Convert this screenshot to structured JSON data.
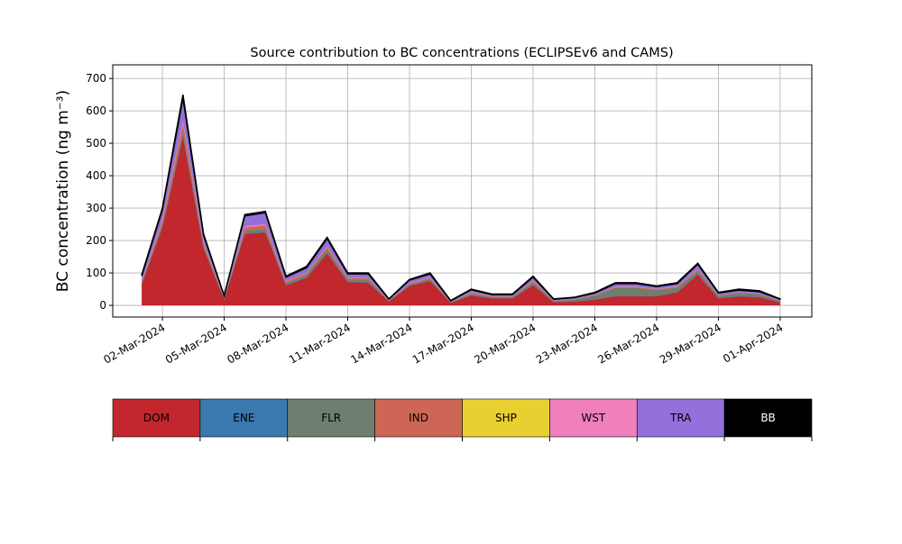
{
  "chart_data": {
    "type": "stacked_area",
    "title": "Source contribution to BC concentrations (ECLIPSEv6 and CAMS)",
    "y_label": "BC concentration (ng m⁻³)",
    "x": [
      "01-Mar-2024",
      "02-Mar-2024",
      "03-Mar-2024",
      "04-Mar-2024",
      "05-Mar-2024",
      "06-Mar-2024",
      "07-Mar-2024",
      "08-Mar-2024",
      "09-Mar-2024",
      "10-Mar-2024",
      "11-Mar-2024",
      "12-Mar-2024",
      "13-Mar-2024",
      "14-Mar-2024",
      "15-Mar-2024",
      "16-Mar-2024",
      "17-Mar-2024",
      "18-Mar-2024",
      "19-Mar-2024",
      "20-Mar-2024",
      "21-Mar-2024",
      "22-Mar-2024",
      "23-Mar-2024",
      "24-Mar-2024",
      "25-Mar-2024",
      "26-Mar-2024",
      "27-Mar-2024",
      "28-Mar-2024",
      "29-Mar-2024",
      "30-Mar-2024",
      "31-Mar-2024",
      "01-Apr-2024"
    ],
    "xticks": [
      "02-Mar-2024",
      "05-Mar-2024",
      "08-Mar-2024",
      "11-Mar-2024",
      "14-Mar-2024",
      "17-Mar-2024",
      "20-Mar-2024",
      "23-Mar-2024",
      "26-Mar-2024",
      "29-Mar-2024",
      "01-Apr-2024"
    ],
    "ylim": [
      -36,
      742
    ],
    "yticks": [
      0,
      100,
      200,
      300,
      400,
      500,
      600,
      700
    ],
    "grid": true,
    "series": [
      {
        "name": "DOM",
        "color": "#c1272d",
        "values": [
          65,
          240,
          520,
          175,
          18,
          220,
          225,
          62,
          85,
          160,
          72,
          70,
          12,
          60,
          75,
          8,
          30,
          22,
          22,
          62,
          10,
          12,
          18,
          28,
          28,
          28,
          40,
          95,
          22,
          28,
          25,
          10
        ]
      },
      {
        "name": "ENE",
        "color": "#3a78b0",
        "values": [
          1,
          2,
          3,
          2,
          1,
          2,
          2,
          1,
          1,
          2,
          1,
          1,
          0,
          1,
          1,
          0,
          1,
          0,
          0,
          1,
          0,
          0,
          0,
          1,
          1,
          1,
          1,
          1,
          0,
          0,
          0,
          0
        ]
      },
      {
        "name": "FLR",
        "color": "#6f7f6f",
        "values": [
          5,
          8,
          15,
          8,
          3,
          8,
          9,
          6,
          8,
          10,
          7,
          8,
          2,
          4,
          5,
          2,
          6,
          4,
          4,
          8,
          4,
          6,
          12,
          25,
          25,
          18,
          14,
          10,
          8,
          10,
          9,
          4
        ]
      },
      {
        "name": "IND",
        "color": "#cd6656",
        "values": [
          4,
          12,
          25,
          9,
          2,
          11,
          12,
          5,
          6,
          8,
          5,
          5,
          1,
          3,
          4,
          1,
          3,
          2,
          2,
          5,
          1,
          1,
          2,
          3,
          3,
          3,
          3,
          5,
          2,
          2,
          2,
          1
        ]
      },
      {
        "name": "SHP",
        "color": "#e8d031",
        "values": [
          0,
          0,
          1,
          0,
          0,
          0,
          0,
          0,
          0,
          0,
          0,
          0,
          0,
          0,
          0,
          0,
          0,
          0,
          0,
          0,
          0,
          0,
          0,
          0,
          0,
          0,
          0,
          0,
          0,
          0,
          0,
          0
        ]
      },
      {
        "name": "WST",
        "color": "#f07fbd",
        "values": [
          1,
          3,
          6,
          2,
          1,
          3,
          3,
          1,
          1,
          2,
          1,
          1,
          0,
          1,
          1,
          0,
          1,
          0,
          0,
          1,
          0,
          0,
          0,
          1,
          1,
          1,
          1,
          1,
          0,
          0,
          0,
          0
        ]
      },
      {
        "name": "TRA",
        "color": "#9370db",
        "values": [
          15,
          30,
          70,
          20,
          4,
          32,
          35,
          12,
          15,
          24,
          11,
          12,
          4,
          9,
          11,
          3,
          7,
          5,
          5,
          10,
          4,
          5,
          6,
          9,
          9,
          7,
          8,
          15,
          6,
          7,
          6,
          4
        ]
      },
      {
        "name": "BB",
        "color": "#000000",
        "values": [
          4,
          5,
          10,
          4,
          1,
          4,
          4,
          3,
          4,
          4,
          3,
          3,
          1,
          2,
          3,
          1,
          2,
          2,
          2,
          3,
          1,
          1,
          2,
          3,
          3,
          2,
          3,
          3,
          2,
          3,
          3,
          1
        ]
      }
    ]
  }
}
